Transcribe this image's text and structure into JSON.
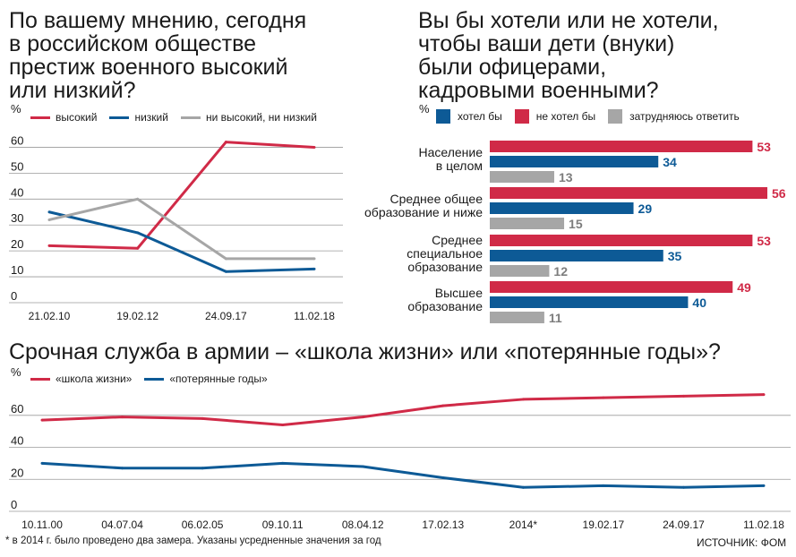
{
  "colors": {
    "red": "#d02a47",
    "blue": "#0d5a96",
    "gray": "#a6a6a6"
  },
  "chart_data": [
    {
      "type": "line",
      "title_lines": [
        "По вашему мнению, сегодня",
        "в российском обществе",
        "престиж военного высокий",
        "или низкий?"
      ],
      "unit": "%",
      "categories": [
        "21.02.10",
        "19.02.12",
        "24.09.17",
        "11.02.18"
      ],
      "yticks": [
        "0",
        "10",
        "20",
        "30",
        "40",
        "50",
        "60"
      ],
      "ylim": [
        0,
        65
      ],
      "series": [
        {
          "name": "высокий",
          "color": "red",
          "values": [
            22,
            21,
            62,
            60
          ]
        },
        {
          "name": "низкий",
          "color": "blue",
          "values": [
            35,
            27,
            12,
            13
          ]
        },
        {
          "name": "ни высокий, ни низкий",
          "color": "gray",
          "values": [
            32,
            40,
            17,
            17
          ]
        }
      ],
      "grid": true
    },
    {
      "type": "bar",
      "orientation": "horizontal",
      "title_lines": [
        "Вы бы хотели или не хотели,",
        "чтобы ваши дети (внуки)",
        "были офицерами,",
        "кадровыми военными?"
      ],
      "unit": "%",
      "series_names": [
        {
          "name": "хотел бы",
          "color": "blue"
        },
        {
          "name": "не хотел бы",
          "color": "red"
        },
        {
          "name": "затрудняюсь ответить",
          "color": "gray"
        }
      ],
      "groups": [
        {
          "label_lines": [
            "Население",
            "в целом"
          ],
          "values": {
            "red": 53,
            "blue": 34,
            "gray": 13
          }
        },
        {
          "label_lines": [
            "Среднее общее",
            "образование и ниже"
          ],
          "values": {
            "red": 56,
            "blue": 29,
            "gray": 15
          }
        },
        {
          "label_lines": [
            "Среднее",
            "специальное",
            "образование"
          ],
          "values": {
            "red": 53,
            "blue": 35,
            "gray": 12
          }
        },
        {
          "label_lines": [
            "Высшее",
            "образование"
          ],
          "values": {
            "red": 49,
            "blue": 40,
            "gray": 11
          }
        }
      ]
    },
    {
      "type": "line",
      "title": "Срочная служба в армии – «школа жизни» или «потерянные годы»?",
      "unit": "%",
      "categories": [
        "10.11.00",
        "04.07.04",
        "06.02.05",
        "09.10.11",
        "08.04.12",
        "17.02.13",
        "2014*",
        "19.02.17",
        "24.09.17",
        "11.02.18"
      ],
      "yticks": [
        "0",
        "20",
        "40",
        "60"
      ],
      "ylim": [
        0,
        75
      ],
      "series": [
        {
          "name": "«школа жизни»",
          "color": "red",
          "values": [
            57,
            59,
            58,
            54,
            59,
            66,
            70,
            71,
            72,
            73
          ]
        },
        {
          "name": "«потерянные годы»",
          "color": "blue",
          "values": [
            30,
            27,
            27,
            30,
            28,
            21,
            15,
            16,
            15,
            16
          ]
        }
      ],
      "grid": true
    }
  ],
  "footnote": "* в 2014 г. было проведено два замера. Указаны усредненные значения за год",
  "source": "ИСТОЧНИК: ФОМ"
}
